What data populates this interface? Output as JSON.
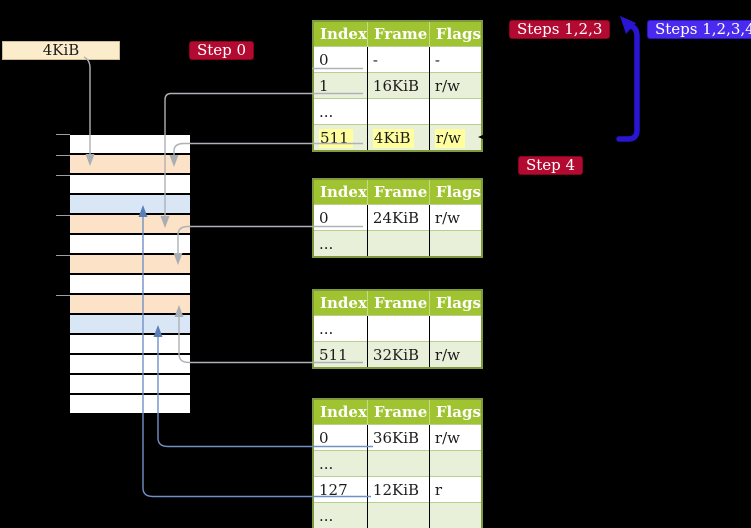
{
  "colors": {
    "background": "#000000",
    "table_header_bg": "#a0c332",
    "table_alt_row_bg": "#e9f0da",
    "highlight_bg": "#ffff9e",
    "badge_red_bg": "#b20a31",
    "badge_blue_bg": "#4a2aee",
    "thick_arrow_blue": "#2915d2",
    "pointer_gray": "#aeb1b7",
    "pointer_blue": "#7191c4",
    "stack_peach": "#fce2c6",
    "stack_blue": "#d9e6f5",
    "label_box_bg": "#fbedcb"
  },
  "labels": {
    "page_size": "4KiB",
    "step0": "Step 0",
    "steps123": "Steps 1,2,3",
    "steps1234": "Steps 1,2,3,4",
    "step4": "Step 4"
  },
  "memory_stack": {
    "rows": [
      "white",
      "peach",
      "white",
      "blue",
      "peach",
      "white",
      "peach",
      "white",
      "peach",
      "blue",
      "white",
      "white",
      "white",
      "white"
    ]
  },
  "tables": [
    {
      "headers": [
        "Index",
        "Frame",
        "Flags"
      ],
      "rows": [
        {
          "cells": [
            "0",
            "-",
            "-"
          ]
        },
        {
          "cells": [
            "1",
            "16KiB",
            "r/w"
          ]
        },
        {
          "cells": [
            "...",
            "",
            ""
          ]
        },
        {
          "cells": [
            "511",
            "4KiB",
            "r/w"
          ],
          "highlight": true
        }
      ]
    },
    {
      "headers": [
        "Index",
        "Frame",
        "Flags"
      ],
      "rows": [
        {
          "cells": [
            "0",
            "24KiB",
            "r/w"
          ]
        },
        {
          "cells": [
            "...",
            "",
            ""
          ]
        }
      ]
    },
    {
      "headers": [
        "Index",
        "Frame",
        "Flags"
      ],
      "rows": [
        {
          "cells": [
            "...",
            "",
            ""
          ]
        },
        {
          "cells": [
            "511",
            "32KiB",
            "r/w"
          ]
        }
      ]
    },
    {
      "headers": [
        "Index",
        "Frame",
        "Flags"
      ],
      "rows": [
        {
          "cells": [
            "0",
            "36KiB",
            "r/w"
          ]
        },
        {
          "cells": [
            "...",
            "",
            ""
          ]
        },
        {
          "cells": [
            "127",
            "12KiB",
            "r"
          ]
        },
        {
          "cells": [
            "...",
            "",
            ""
          ]
        }
      ]
    }
  ]
}
